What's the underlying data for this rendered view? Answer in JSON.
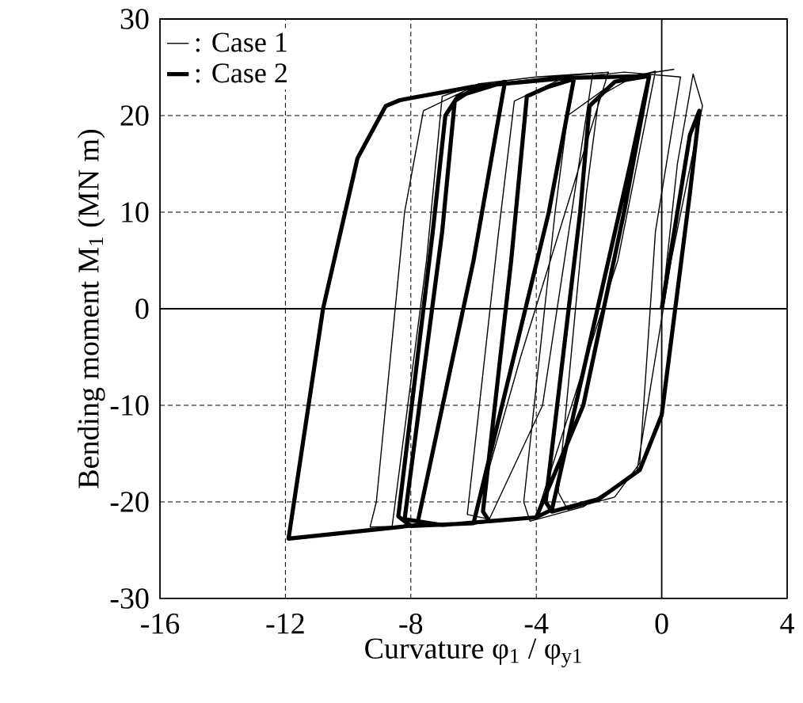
{
  "chart_data": {
    "type": "line",
    "xlabel": "Curvature  φ$_{1}$ / φ$_{y1}$",
    "ylabel": "Bending moment M$_{1}$ (MN m)",
    "xlim": [
      -16,
      4
    ],
    "xticks": [
      -16,
      -12,
      -8,
      -4,
      0,
      4
    ],
    "ylim": [
      -30,
      30
    ],
    "yticks": [
      -30,
      -20,
      -10,
      0,
      10,
      20,
      30
    ],
    "grid": true,
    "legend": "top left",
    "marker": "none",
    "series": [
      {
        "name": ": Case 1",
        "color": "#000000",
        "line_style": "solid",
        "x": [
          0,
          0.5,
          1.0,
          1.3,
          0.3,
          -0.8,
          -2.5,
          -4.2,
          -4.4,
          -3.4,
          -3.0,
          -1.5,
          -0.2,
          -1.4,
          -4.0,
          -6.0,
          -8.0,
          -9.3,
          -9.1,
          -8.2,
          -7.6,
          -6.0,
          -3.5,
          -1.7,
          -4.5,
          -6.0,
          -8.6,
          -7.5,
          -7.0,
          -5.8,
          -4.0,
          -2.2,
          -3.8,
          -5.5,
          -6.2,
          -5.2,
          -4.7,
          -3.2,
          -1.2,
          0.6,
          -0.2,
          -0.7,
          -1.5,
          -3.0,
          -3.3,
          -2.4,
          -2.0,
          -0.8,
          0.4
        ],
        "values": [
          0,
          15,
          24.3,
          21,
          5,
          -17,
          -20.5,
          -22,
          -20,
          10,
          20,
          23.5,
          24.6,
          5,
          -21.5,
          -22.3,
          -22.5,
          -22.6,
          -20,
          10,
          20.5,
          23,
          24,
          24.5,
          -5,
          -22.2,
          -22.6,
          5,
          22,
          23.3,
          24,
          24.4,
          -10,
          -21.8,
          -21.3,
          8,
          21.5,
          23.8,
          24.5,
          24,
          8,
          -16,
          -19.5,
          -20.8,
          -19,
          12,
          22,
          24.2,
          24.8
        ]
      },
      {
        "name": ": Case 2",
        "color": "#000000",
        "line_style": "solid",
        "x": [
          0,
          0.9,
          1.2,
          0.9,
          0,
          -0.7,
          -2.0,
          -3.5,
          -3.7,
          -2.6,
          -2.3,
          -1.5,
          -0.4,
          -1.0,
          -3.5,
          -4.0,
          -5.5,
          -5.7,
          -4.8,
          -4.3,
          -3.6,
          -2.8,
          -3.6,
          -6.0,
          -8.0,
          -8.4,
          -7.3,
          -6.9,
          -6.5,
          -5.5,
          -5.0,
          -6.0,
          -7.8,
          -11.9,
          -10.8,
          -9.7,
          -8.8,
          -8.35,
          -6.0,
          -3.0,
          -0.4,
          -1.2,
          -2.5,
          -4.0,
          -7.0,
          -8.2,
          -7.0,
          -6.6,
          -5.8
        ],
        "values": [
          0,
          18,
          20.5,
          12,
          -11,
          -16.7,
          -19.7,
          -21,
          -20,
          10,
          21,
          23.5,
          24.1,
          15,
          -20.8,
          -21.6,
          -22,
          -21,
          5,
          22,
          23,
          23.8,
          10,
          -22.2,
          -22.5,
          -21.5,
          8,
          20,
          22,
          23,
          23.5,
          5,
          -22.4,
          -23.8,
          0,
          15.6,
          21,
          21.6,
          23,
          23.9,
          24.1,
          10,
          -10,
          -21.6,
          -22.4,
          -21.8,
          8,
          21.5,
          23.2
        ]
      }
    ]
  }
}
